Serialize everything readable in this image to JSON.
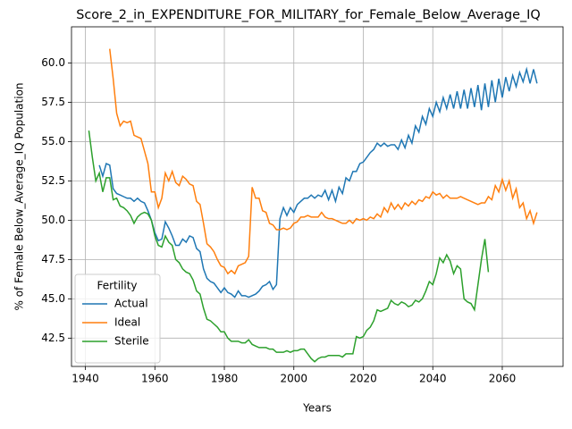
{
  "chart_data": {
    "type": "line",
    "title": "Score_2_in_EXPENDITURE_FOR_MILITARY_for_Female_Below_Average_IQ",
    "xlabel": "Years",
    "ylabel": "% of Female Below_Average_IQ Population",
    "legend_title": "Fertility",
    "legend_loc": "lower left",
    "grid": true,
    "xlim": [
      1936,
      2077.5
    ],
    "ylim": [
      40.7,
      62.3
    ],
    "xticks": [
      1940,
      1960,
      1980,
      2000,
      2020,
      2040,
      2060
    ],
    "yticks": [
      42.5,
      {
        "value": 45,
        "label": "45.0"
      },
      47.5,
      {
        "value": 50,
        "label": "50.0"
      },
      52.5,
      {
        "value": 55,
        "label": "55.0"
      },
      57.5,
      {
        "value": 60,
        "label": "60.0"
      }
    ],
    "x": [
      1941,
      1942,
      1943,
      1944,
      1945,
      1946,
      1947,
      1948,
      1949,
      1950,
      1951,
      1952,
      1953,
      1954,
      1955,
      1956,
      1957,
      1958,
      1959,
      1960,
      1961,
      1962,
      1963,
      1964,
      1965,
      1966,
      1967,
      1968,
      1969,
      1970,
      1971,
      1972,
      1973,
      1974,
      1975,
      1976,
      1977,
      1978,
      1979,
      1980,
      1981,
      1982,
      1983,
      1984,
      1985,
      1986,
      1987,
      1988,
      1989,
      1990,
      1991,
      1992,
      1993,
      1994,
      1995,
      1996,
      1997,
      1998,
      1999,
      2000,
      2001,
      2002,
      2003,
      2004,
      2005,
      2006,
      2007,
      2008,
      2009,
      2010,
      2011,
      2012,
      2013,
      2014,
      2015,
      2016,
      2017,
      2018,
      2019,
      2020,
      2021,
      2022,
      2023,
      2024,
      2025,
      2026,
      2027,
      2028,
      2029,
      2030,
      2031,
      2032,
      2033,
      2034,
      2035,
      2036,
      2037,
      2038,
      2039,
      2040,
      2041,
      2042,
      2043,
      2044,
      2045,
      2046,
      2047,
      2048,
      2049,
      2050,
      2051,
      2052,
      2053,
      2054,
      2055,
      2056,
      2057,
      2058,
      2059,
      2060,
      2061,
      2062,
      2063,
      2064,
      2065,
      2066,
      2067,
      2068,
      2069,
      2070
    ],
    "series": [
      {
        "name": "Actual",
        "color": "#1f77b4",
        "values": [
          null,
          null,
          null,
          53.5,
          52.8,
          53.6,
          53.5,
          52.0,
          51.7,
          51.6,
          51.5,
          51.4,
          51.4,
          51.2,
          51.4,
          51.2,
          51.1,
          50.6,
          50.0,
          49.2,
          48.7,
          48.8,
          49.9,
          49.5,
          49.0,
          48.4,
          48.4,
          48.8,
          48.6,
          49.0,
          48.9,
          48.2,
          48.0,
          46.9,
          46.3,
          46.1,
          46.0,
          45.7,
          45.4,
          45.7,
          45.4,
          45.3,
          45.1,
          45.5,
          45.2,
          45.2,
          45.1,
          45.2,
          45.3,
          45.5,
          45.8,
          45.9,
          46.1,
          45.6,
          45.9,
          50.1,
          50.8,
          50.3,
          50.8,
          50.5,
          51.0,
          51.2,
          51.4,
          51.4,
          51.6,
          51.4,
          51.6,
          51.5,
          51.9,
          51.3,
          51.9,
          51.2,
          52.1,
          51.7,
          52.7,
          52.5,
          53.1,
          53.1,
          53.6,
          53.7,
          54.0,
          54.3,
          54.5,
          54.9,
          54.7,
          54.9,
          54.7,
          54.8,
          54.8,
          54.5,
          55.1,
          54.6,
          55.4,
          54.9,
          56.0,
          55.6,
          56.6,
          56.1,
          57.1,
          56.6,
          57.5,
          56.9,
          57.8,
          57.1,
          58.0,
          57.1,
          58.2,
          57.1,
          58.3,
          57.1,
          58.4,
          57.2,
          58.6,
          57.0,
          58.7,
          57.2,
          58.9,
          57.5,
          59.0,
          57.8,
          59.1,
          58.2,
          59.2,
          58.5,
          59.4,
          58.8,
          59.6,
          58.7,
          59.6,
          58.7
        ]
      },
      {
        "name": "Ideal",
        "color": "#ff7f0e",
        "values": [
          null,
          null,
          null,
          null,
          null,
          null,
          60.9,
          59.0,
          56.8,
          56.0,
          56.3,
          56.2,
          56.3,
          55.4,
          55.3,
          55.2,
          54.4,
          53.6,
          51.8,
          51.8,
          50.8,
          51.4,
          53.0,
          52.5,
          53.1,
          52.4,
          52.2,
          52.8,
          52.6,
          52.3,
          52.2,
          51.2,
          51.0,
          49.8,
          48.5,
          48.3,
          48.0,
          47.5,
          47.1,
          47.0,
          46.6,
          46.8,
          46.6,
          47.1,
          47.2,
          47.3,
          47.7,
          52.1,
          51.4,
          51.4,
          50.6,
          50.5,
          49.8,
          49.7,
          49.4,
          49.4,
          49.5,
          49.4,
          49.5,
          49.8,
          49.9,
          50.2,
          50.2,
          50.3,
          50.2,
          50.2,
          50.2,
          50.5,
          50.2,
          50.1,
          50.1,
          50.0,
          49.9,
          49.8,
          49.8,
          50.0,
          49.8,
          50.1,
          50.0,
          50.1,
          50.0,
          50.2,
          50.1,
          50.4,
          50.2,
          50.8,
          50.5,
          51.1,
          50.7,
          51.0,
          50.7,
          51.1,
          50.9,
          51.2,
          51.0,
          51.3,
          51.2,
          51.5,
          51.4,
          51.8,
          51.6,
          51.7,
          51.4,
          51.6,
          51.4,
          51.4,
          51.4,
          51.5,
          51.4,
          51.3,
          51.2,
          51.1,
          51.0,
          51.1,
          51.1,
          51.5,
          51.3,
          52.2,
          51.8,
          52.6,
          51.9,
          52.5,
          51.4,
          52.0,
          50.8,
          51.1,
          50.1,
          50.6,
          49.8,
          50.5
        ]
      },
      {
        "name": "Sterile",
        "color": "#2ca02c",
        "values": [
          55.7,
          54.0,
          52.5,
          53.0,
          51.8,
          52.7,
          52.7,
          51.3,
          51.4,
          50.9,
          50.8,
          50.6,
          50.3,
          49.8,
          50.2,
          50.4,
          50.5,
          50.4,
          50.0,
          49.0,
          48.4,
          48.3,
          49.0,
          48.6,
          48.4,
          47.5,
          47.3,
          46.9,
          46.7,
          46.6,
          46.2,
          45.5,
          45.3,
          44.4,
          43.7,
          43.6,
          43.4,
          43.2,
          42.9,
          42.9,
          42.5,
          42.3,
          42.3,
          42.3,
          42.2,
          42.2,
          42.4,
          42.1,
          42.0,
          41.9,
          41.9,
          41.9,
          41.8,
          41.8,
          41.6,
          41.6,
          41.6,
          41.7,
          41.6,
          41.7,
          41.7,
          41.8,
          41.8,
          41.5,
          41.2,
          41.0,
          41.2,
          41.3,
          41.3,
          41.4,
          41.4,
          41.4,
          41.4,
          41.3,
          41.5,
          41.5,
          41.5,
          42.6,
          42.5,
          42.6,
          43.0,
          43.2,
          43.6,
          44.3,
          44.2,
          44.3,
          44.4,
          44.9,
          44.7,
          44.6,
          44.8,
          44.7,
          44.5,
          44.6,
          44.9,
          44.8,
          45.0,
          45.5,
          46.1,
          45.9,
          46.6,
          47.6,
          47.3,
          47.8,
          47.4,
          46.6,
          47.1,
          46.9,
          45.0,
          44.8,
          44.7,
          44.3,
          45.9,
          47.5,
          48.8,
          46.7,
          null,
          null,
          null,
          null,
          null,
          null,
          null,
          null,
          null,
          null,
          null,
          null,
          null,
          null
        ]
      }
    ]
  }
}
